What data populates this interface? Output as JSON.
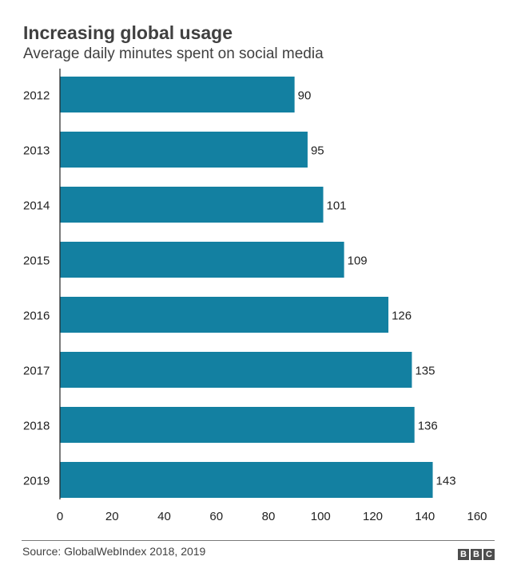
{
  "header": {
    "title": "Increasing global usage",
    "subtitle": "Average daily minutes spent on social media"
  },
  "footer": {
    "source": "Source: GlobalWebIndex 2018, 2019",
    "logo_letters": [
      "B",
      "B",
      "C"
    ]
  },
  "colors": {
    "bar": "#1380A1",
    "axis": "#222222",
    "text": "#222222",
    "title": "#404040"
  },
  "chart_data": {
    "type": "bar",
    "orientation": "horizontal",
    "title": "Increasing global usage",
    "subtitle": "Average daily minutes spent on social media",
    "xlabel": "",
    "ylabel": "",
    "categories": [
      "2012",
      "2013",
      "2014",
      "2015",
      "2016",
      "2017",
      "2018",
      "2019"
    ],
    "values": [
      90,
      95,
      101,
      109,
      126,
      135,
      136,
      143
    ],
    "data_labels": [
      "90",
      "95",
      "101",
      "109",
      "126",
      "135",
      "136",
      "143"
    ],
    "xlim": [
      0,
      160
    ],
    "x_ticks": [
      0,
      20,
      40,
      60,
      80,
      100,
      120,
      140,
      160
    ],
    "grid": false,
    "legend": "none"
  }
}
